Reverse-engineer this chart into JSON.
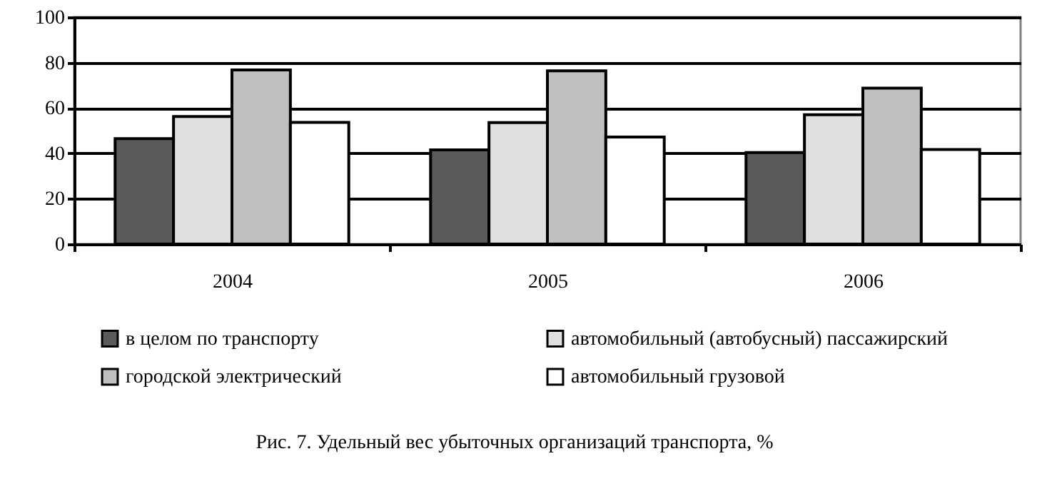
{
  "chart_data": {
    "type": "bar",
    "title": "Рис. 7. Удельный вес убыточных организаций транспорта, %",
    "categories": [
      "2004",
      "2005",
      "2006"
    ],
    "series": [
      {
        "name": "в целом по транспорту",
        "color": "#5a5a5a",
        "values": [
          46.5,
          41.5,
          40.3
        ]
      },
      {
        "name": "автомобильный (автобусный) пассажирский",
        "color": "#e0e0e0",
        "values": [
          56.2,
          53.5,
          57
        ]
      },
      {
        "name": "городской электрический",
        "color": "#c0c0c0",
        "values": [
          76.7,
          76.3,
          68.7
        ]
      },
      {
        "name": "автомобильный грузовой",
        "color": "#ffffff",
        "values": [
          53.6,
          47.2,
          41.7
        ]
      }
    ],
    "ylim": [
      0,
      100
    ],
    "yticks": [
      0,
      20,
      40,
      60,
      80,
      100
    ],
    "grid": "y",
    "legend": "bottom"
  }
}
